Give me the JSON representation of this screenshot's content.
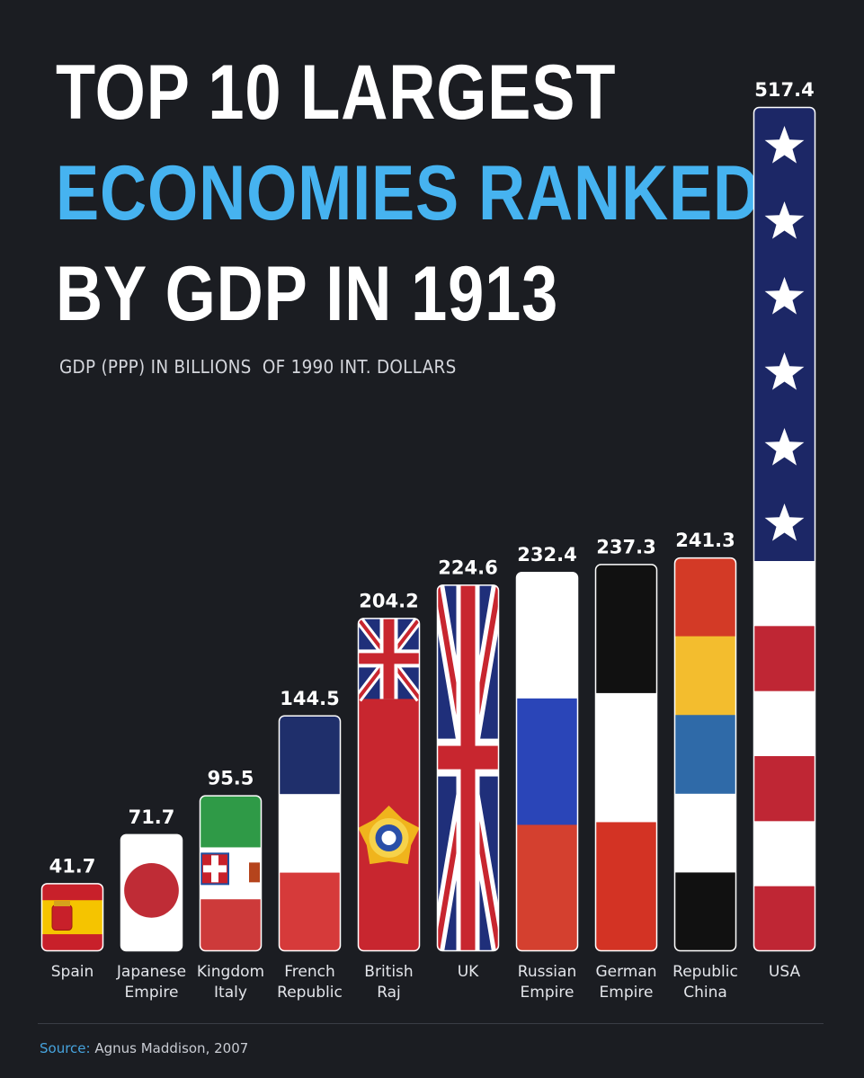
{
  "header": {
    "title_line1": "TOP 10 LARGEST",
    "title_line2": "ECONOMIES RANKED",
    "title_line3": "BY GDP IN 1913",
    "subtitle": "GDP (PPP) IN BILLIONS  OF 1990 INT. DOLLARS"
  },
  "footer": {
    "source_label": "Source:",
    "source_text": " Agnus Maddison, 2007"
  },
  "colors": {
    "background": "#1b1d22",
    "title_accent": "#46b3f0",
    "text": "#ffffff"
  },
  "chart_data": {
    "type": "bar",
    "categories": [
      "Spain",
      "Japanese Empire",
      "Kingdom Italy",
      "French Republic",
      "British Raj",
      "UK",
      "Russian Empire",
      "German Empire",
      "Republic China",
      "USA"
    ],
    "category_lines": [
      [
        "Spain"
      ],
      [
        "Japanese",
        "Empire"
      ],
      [
        "Kingdom",
        "Italy"
      ],
      [
        "French",
        "Republic"
      ],
      [
        "British",
        "Raj"
      ],
      [
        "UK"
      ],
      [
        "Russian",
        "Empire"
      ],
      [
        "German",
        "Empire"
      ],
      [
        "Republic",
        "China"
      ],
      [
        "USA"
      ]
    ],
    "values": [
      41.7,
      71.7,
      95.5,
      144.5,
      204.2,
      224.6,
      232.4,
      237.3,
      241.3,
      517.4
    ],
    "value_labels": [
      "41.7",
      "71.7",
      "95.5",
      "144.5",
      "204.2",
      "224.6",
      "232.4",
      "237.3",
      "241.3",
      "517.4"
    ],
    "flags": [
      "spain-flag",
      "japan-flag",
      "italy-flag",
      "france-flag",
      "british-raj-flag",
      "uk-flag",
      "russia-flag",
      "germany-flag",
      "china-five-races-flag",
      "usa-flag"
    ],
    "title": "TOP 10 LARGEST ECONOMIES RANKED BY GDP IN 1913",
    "xlabel": "",
    "ylabel": "GDP (PPP) IN BILLIONS  OF 1990 INT. DOLLARS",
    "ylim": [
      0,
      517.4
    ],
    "grid": false,
    "legend": "none"
  }
}
